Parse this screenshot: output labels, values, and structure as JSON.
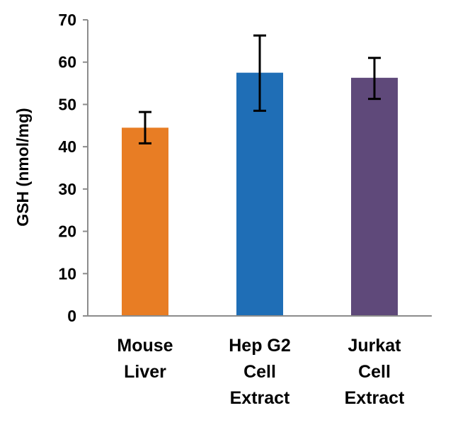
{
  "chart_data": {
    "type": "bar",
    "title": "",
    "xlabel": "",
    "ylabel": "GSH (nmol/mg)",
    "ylim": [
      0,
      70
    ],
    "yticks": [
      0,
      10,
      20,
      30,
      40,
      50,
      60,
      70
    ],
    "grid": false,
    "legend": "none",
    "categories": [
      [
        "Mouse",
        "Liver"
      ],
      [
        "Hep G2",
        "Cell",
        "Extract"
      ],
      [
        "Jurkat",
        "Cell",
        "Extract"
      ]
    ],
    "values": [
      44.5,
      57.5,
      56.3
    ],
    "error_low": [
      3.7,
      9.0,
      5.0
    ],
    "error_high": [
      3.7,
      8.8,
      4.7
    ],
    "colors": [
      "#E87D24",
      "#1F6EB6",
      "#5F497A"
    ]
  }
}
